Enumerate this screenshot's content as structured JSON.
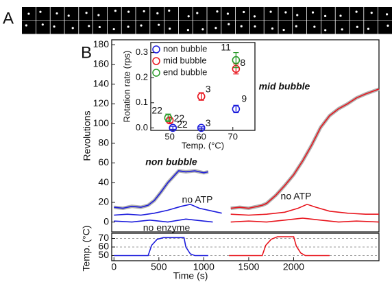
{
  "panel_labels": [
    "A",
    "B"
  ],
  "chart_data": [
    {
      "type": "line",
      "ylabel": "Revolutions",
      "xlim": [
        -25,
        2950
      ],
      "ylim": [
        -10,
        185
      ],
      "yticks": [
        0,
        20,
        40,
        60,
        80,
        100,
        120,
        140,
        160,
        180
      ],
      "series": [
        {
          "color": "#1a1adc",
          "fit": true,
          "x": [
            0,
            100,
            200,
            300,
            380,
            450,
            520,
            600,
            680,
            720,
            800,
            900,
            1000,
            1050
          ],
          "values": [
            15,
            14,
            16,
            15,
            17,
            22,
            30,
            40,
            48,
            52,
            51,
            52,
            50,
            51
          ]
        },
        {
          "color": "#1a1adc",
          "x": [
            0,
            150,
            300,
            450,
            600,
            750,
            850,
            950,
            1100,
            1200
          ],
          "values": [
            7,
            8,
            7,
            9,
            12,
            16,
            18,
            14,
            11,
            9
          ]
        },
        {
          "color": "#1a1adc",
          "x": [
            0,
            200,
            400,
            600,
            800,
            1000,
            1100
          ],
          "values": [
            1,
            0,
            2,
            0,
            3,
            1,
            0
          ]
        },
        {
          "color": "#e8141c",
          "fit": true,
          "x": [
            1300,
            1400,
            1500,
            1600,
            1650,
            1700,
            1800,
            1900,
            2000,
            2100,
            2200,
            2300,
            2400,
            2500,
            2600,
            2700,
            2800,
            2950
          ],
          "values": [
            14,
            15,
            14,
            16,
            17,
            19,
            27,
            37,
            48,
            62,
            78,
            96,
            108,
            115,
            120,
            126,
            130,
            135
          ]
        },
        {
          "color": "#e8141c",
          "x": [
            1300,
            1500,
            1700,
            1900,
            2050,
            2150,
            2250,
            2400,
            2600,
            2800,
            2950
          ],
          "values": [
            8,
            7,
            8,
            10,
            14,
            18,
            15,
            11,
            9,
            8,
            8
          ]
        },
        {
          "color": "#e8141c",
          "x": [
            1300,
            1500,
            1700,
            1900,
            2100,
            2300,
            2500,
            2700,
            2950
          ],
          "values": [
            0,
            1,
            0,
            2,
            4,
            2,
            0,
            1,
            0
          ]
        }
      ],
      "annotations": [
        {
          "text": "non bubble",
          "color": "#1a1adc"
        },
        {
          "text": "no ATP",
          "color": "#1a1adc"
        },
        {
          "text": "no enzyme",
          "color": "#1a1adc"
        },
        {
          "text": "mid bubble",
          "color": "#e8141c"
        },
        {
          "text": "no ATP",
          "color": "#e8141c"
        }
      ]
    },
    {
      "type": "line",
      "xlabel": "Time (s)",
      "ylabel": "Temp. (°C)",
      "xlim": [
        -25,
        2950
      ],
      "ylim": [
        44,
        76
      ],
      "xticks": [
        0,
        500,
        1000,
        1500,
        2000
      ],
      "yticks": [
        50,
        60,
        70
      ],
      "grid": true,
      "series": [
        {
          "color": "#1a1adc",
          "x": [
            0,
            380,
            420,
            480,
            550,
            780,
            800,
            850,
            900,
            1050
          ],
          "values": [
            50,
            50,
            62,
            69,
            71,
            71,
            60,
            52,
            50,
            50
          ]
        },
        {
          "color": "#e8141c",
          "x": [
            1280,
            1650,
            1690,
            1750,
            1820,
            2000,
            2030,
            2080,
            2130,
            2400
          ],
          "values": [
            50,
            50,
            62,
            69,
            72,
            72,
            61,
            53,
            50,
            50
          ]
        }
      ]
    },
    {
      "type": "scatter",
      "xlabel": "Temp. (°C)",
      "ylabel": "Rotation rate (rps)",
      "xlim": [
        44,
        77
      ],
      "ylim": [
        -0.01,
        0.34
      ],
      "xticks": [
        50,
        60,
        70
      ],
      "yticks": [
        {
          "value": 0,
          "label": "0.0"
        },
        0.1,
        0.2,
        0.3
      ],
      "series": [
        {
          "name": "non bubble",
          "color": "#1a1adc",
          "x": [
            51,
            60,
            71
          ],
          "values": [
            0.0,
            0.0,
            0.075
          ],
          "errors": [
            0.006,
            0.004,
            0.015
          ],
          "n_labels": [
            "22",
            "3",
            "9"
          ]
        },
        {
          "name": "mid bubble",
          "color": "#e8141c",
          "x": [
            50,
            60,
            71
          ],
          "values": [
            0.03,
            0.125,
            0.235
          ],
          "errors": [
            0.01,
            0.015,
            0.02
          ],
          "n_labels": [
            "22",
            "3",
            "8"
          ]
        },
        {
          "name": "end bubble",
          "color": "#2a9a2a",
          "x": [
            49.5,
            71
          ],
          "values": [
            0.04,
            0.27
          ],
          "errors": [
            0.015,
            0.03
          ],
          "n_labels": [
            "22",
            "11"
          ]
        }
      ]
    }
  ]
}
